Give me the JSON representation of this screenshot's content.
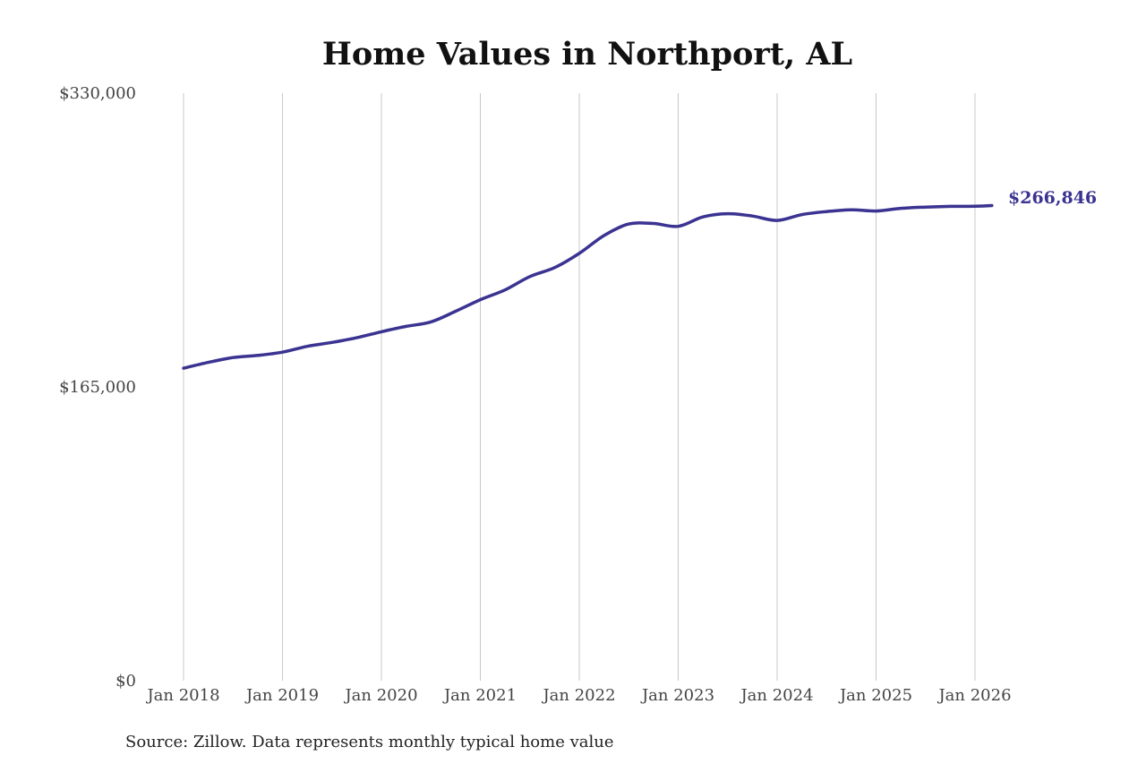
{
  "chart_data": {
    "type": "line",
    "title": "Home Values in Northport, AL",
    "source": "Source: Zillow. Data represents monthly typical home value",
    "xlabel": "",
    "ylabel": "",
    "ylim": [
      0,
      330000
    ],
    "y_ticks": [
      {
        "value": 0,
        "label": "$0"
      },
      {
        "value": 165000,
        "label": "$165,000"
      },
      {
        "value": 330000,
        "label": "$330,000"
      }
    ],
    "x_ticks": [
      {
        "value": 2018,
        "label": "Jan 2018"
      },
      {
        "value": 2019,
        "label": "Jan 2019"
      },
      {
        "value": 2020,
        "label": "Jan 2020"
      },
      {
        "value": 2021,
        "label": "Jan 2021"
      },
      {
        "value": 2022,
        "label": "Jan 2022"
      },
      {
        "value": 2023,
        "label": "Jan 2023"
      },
      {
        "value": 2024,
        "label": "Jan 2024"
      },
      {
        "value": 2025,
        "label": "Jan 2025"
      },
      {
        "value": 2026,
        "label": "Jan 2026"
      }
    ],
    "xlim": [
      2018,
      2026.17
    ],
    "grid": "vertical",
    "legend": "none",
    "line_color": "#3b3391",
    "end_label": "$266,846",
    "series": [
      {
        "x": [
          2018.0,
          2018.25,
          2018.5,
          2018.75,
          2019.0,
          2019.25,
          2019.5,
          2019.75,
          2020.0,
          2020.25,
          2020.5,
          2020.75,
          2021.0,
          2021.25,
          2021.5,
          2021.75,
          2022.0,
          2022.25,
          2022.5,
          2022.75,
          2023.0,
          2023.25,
          2023.5,
          2023.75,
          2024.0,
          2024.25,
          2024.5,
          2024.75,
          2025.0,
          2025.25,
          2025.5,
          2025.75,
          2026.0,
          2026.17
        ],
        "values": [
          175500,
          178800,
          181500,
          182700,
          184500,
          187800,
          190000,
          192600,
          196000,
          199000,
          201500,
          207500,
          214000,
          219500,
          227000,
          232000,
          240000,
          250000,
          256500,
          256800,
          255200,
          260500,
          262300,
          261000,
          258500,
          261800,
          263500,
          264500,
          263800,
          265300,
          266000,
          266400,
          266500,
          266846
        ]
      }
    ]
  }
}
